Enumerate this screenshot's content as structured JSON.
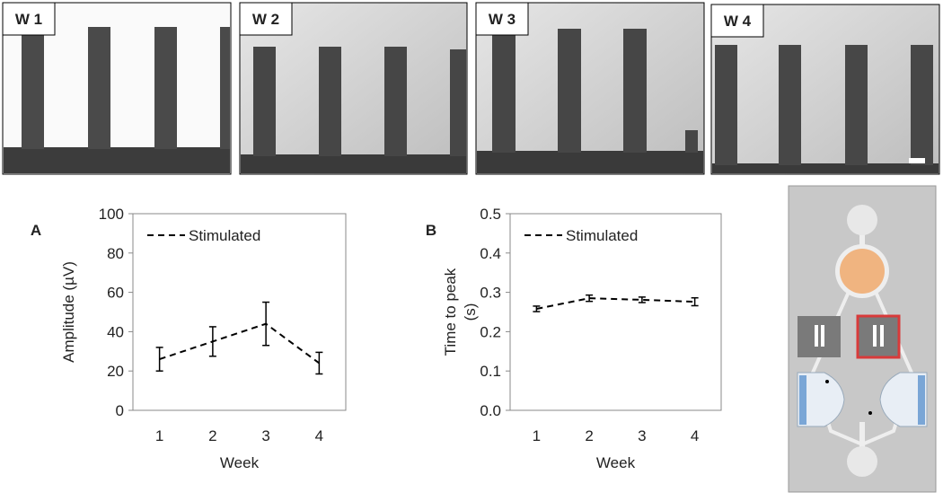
{
  "images": {
    "labels": [
      "W 1",
      "W 2",
      "W 3",
      "W 4"
    ]
  },
  "chart_data": [
    {
      "type": "line",
      "panel_label": "A",
      "x_label": "Week",
      "y_label": [
        "Amplitude (µV)"
      ],
      "categories": [
        "1",
        "2",
        "3",
        "4"
      ],
      "series": [
        {
          "name": "Stimulated",
          "color": "#000000",
          "values": [
            26,
            35,
            44,
            24
          ],
          "errors": [
            6,
            7.5,
            11,
            5.5
          ]
        }
      ],
      "ylim": [
        0,
        100
      ],
      "yticks": [
        0,
        20,
        40,
        60,
        80,
        100
      ],
      "legend": "upper-left"
    },
    {
      "type": "line",
      "panel_label": "B",
      "x_label": "Week",
      "y_label": [
        "Time to peak",
        "(s)"
      ],
      "categories": [
        "1",
        "2",
        "3",
        "4"
      ],
      "series": [
        {
          "name": "Stimulated",
          "color": "#000000",
          "values": [
            0.258,
            0.285,
            0.281,
            0.276
          ],
          "errors": [
            0.007,
            0.008,
            0.007,
            0.01
          ]
        }
      ],
      "ylim": [
        0,
        0.5
      ],
      "yticks": [
        {
          "value": 0,
          "label": "0.0"
        },
        0.1,
        0.2,
        0.3,
        0.4,
        0.5
      ],
      "legend": "upper-left"
    }
  ]
}
